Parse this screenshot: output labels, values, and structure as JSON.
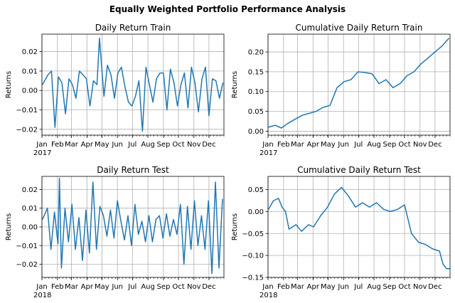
{
  "figure": {
    "title": "Equally Weighted Portfolio Performance Analysis"
  },
  "colors": {
    "line": "#1f77b4",
    "grid": "#b0b0b0",
    "axis": "#000000"
  },
  "chart_data": [
    {
      "type": "line",
      "title": "Daily Return Train",
      "ylabel": "Returns",
      "xlim": [
        "2017-01-01",
        "2017-12-31"
      ],
      "ylim": [
        -0.023,
        0.029
      ],
      "grid": true,
      "x_ticks": [
        "Jan",
        "Feb",
        "Mar",
        "Apr",
        "May",
        "Jun",
        "Jul",
        "Aug",
        "Sep",
        "Oct",
        "Nov",
        "Dec"
      ],
      "x_year": "2017",
      "y_ticks": [
        "−0.02",
        "−0.01",
        "0.00",
        "0.01",
        "0.02"
      ],
      "y_tick_values": [
        -0.02,
        -0.01,
        0.0,
        0.01,
        0.02
      ],
      "x": [
        "2017-01-02",
        "2017-01-13",
        "2017-01-20",
        "2017-01-27",
        "2017-02-03",
        "2017-02-10",
        "2017-02-17",
        "2017-02-24",
        "2017-03-03",
        "2017-03-10",
        "2017-03-17",
        "2017-03-24",
        "2017-03-31",
        "2017-04-07",
        "2017-04-14",
        "2017-04-21",
        "2017-04-26",
        "2017-05-05",
        "2017-05-12",
        "2017-05-19",
        "2017-05-26",
        "2017-06-02",
        "2017-06-09",
        "2017-06-16",
        "2017-06-23",
        "2017-06-30",
        "2017-07-07",
        "2017-07-14",
        "2017-07-21",
        "2017-07-28",
        "2017-08-04",
        "2017-08-11",
        "2017-08-18",
        "2017-08-25",
        "2017-09-01",
        "2017-09-08",
        "2017-09-15",
        "2017-09-22",
        "2017-09-29",
        "2017-10-06",
        "2017-10-13",
        "2017-10-20",
        "2017-10-27",
        "2017-11-03",
        "2017-11-10",
        "2017-11-17",
        "2017-11-24",
        "2017-12-01",
        "2017-12-08",
        "2017-12-15",
        "2017-12-22",
        "2017-12-29"
      ],
      "values": [
        0.003,
        0.008,
        0.01,
        -0.019,
        0.007,
        0.004,
        -0.012,
        0.006,
        0.003,
        -0.004,
        0.01,
        0.008,
        0.006,
        -0.008,
        0.005,
        0.003,
        0.027,
        -0.003,
        0.013,
        0.008,
        -0.004,
        0.009,
        0.012,
        0.002,
        -0.006,
        -0.008,
        -0.003,
        0.005,
        -0.021,
        0.012,
        0.003,
        -0.006,
        0.006,
        0.009,
        0.009,
        -0.01,
        0.011,
        0.004,
        -0.008,
        0.003,
        0.009,
        -0.009,
        0.012,
        0.004,
        -0.011,
        0.006,
        0.012,
        -0.013,
        0.006,
        0.005,
        -0.004,
        0.004
      ]
    },
    {
      "type": "line",
      "title": "Cumulative Daily Return Train",
      "ylabel": "Returns",
      "xlim": [
        "2017-01-01",
        "2017-12-31"
      ],
      "ylim": [
        -0.01,
        0.245
      ],
      "grid": true,
      "x_ticks": [
        "Jan",
        "Feb",
        "Mar",
        "Apr",
        "May",
        "Jun",
        "Jul",
        "Aug",
        "Sep",
        "Oct",
        "Nov",
        "Dec"
      ],
      "x_year": "2017",
      "y_ticks": [
        "0.00",
        "0.05",
        "0.10",
        "0.15",
        "0.20"
      ],
      "y_tick_values": [
        0.0,
        0.05,
        0.1,
        0.15,
        0.2
      ],
      "x": [
        "2017-01-02",
        "2017-01-15",
        "2017-01-28",
        "2017-02-10",
        "2017-02-24",
        "2017-03-10",
        "2017-03-24",
        "2017-04-07",
        "2017-04-21",
        "2017-05-05",
        "2017-05-19",
        "2017-06-02",
        "2017-06-16",
        "2017-06-30",
        "2017-07-14",
        "2017-07-28",
        "2017-08-11",
        "2017-08-25",
        "2017-09-08",
        "2017-09-22",
        "2017-10-06",
        "2017-10-20",
        "2017-11-03",
        "2017-11-17",
        "2017-12-01",
        "2017-12-15",
        "2017-12-29"
      ],
      "values": [
        0.01,
        0.015,
        0.008,
        0.02,
        0.03,
        0.04,
        0.045,
        0.05,
        0.06,
        0.065,
        0.11,
        0.125,
        0.13,
        0.15,
        0.148,
        0.145,
        0.12,
        0.13,
        0.11,
        0.12,
        0.14,
        0.15,
        0.17,
        0.185,
        0.2,
        0.215,
        0.235
      ]
    },
    {
      "type": "line",
      "title": "Daily Return Test",
      "ylabel": "Returns",
      "xlim": [
        "2018-01-01",
        "2018-12-31"
      ],
      "ylim": [
        -0.027,
        0.027
      ],
      "grid": true,
      "x_ticks": [
        "Jan",
        "Feb",
        "Mar",
        "Apr",
        "May",
        "Jun",
        "Jul",
        "Aug",
        "Sep",
        "Oct",
        "Nov",
        "Dec"
      ],
      "x_year": "2018",
      "y_ticks": [
        "−0.02",
        "−0.01",
        "0.00",
        "0.01",
        "0.02"
      ],
      "y_tick_values": [
        -0.02,
        -0.01,
        0.0,
        0.01,
        0.02
      ],
      "x": [
        "2018-01-02",
        "2018-01-12",
        "2018-01-19",
        "2018-01-26",
        "2018-02-02",
        "2018-02-05",
        "2018-02-09",
        "2018-02-16",
        "2018-02-23",
        "2018-03-02",
        "2018-03-09",
        "2018-03-16",
        "2018-03-23",
        "2018-03-30",
        "2018-04-06",
        "2018-04-13",
        "2018-04-20",
        "2018-04-27",
        "2018-05-04",
        "2018-05-11",
        "2018-05-18",
        "2018-05-25",
        "2018-06-01",
        "2018-06-08",
        "2018-06-15",
        "2018-06-22",
        "2018-06-29",
        "2018-07-06",
        "2018-07-13",
        "2018-07-20",
        "2018-07-27",
        "2018-08-03",
        "2018-08-10",
        "2018-08-17",
        "2018-08-24",
        "2018-08-31",
        "2018-09-07",
        "2018-09-14",
        "2018-09-21",
        "2018-09-28",
        "2018-10-05",
        "2018-10-12",
        "2018-10-19",
        "2018-10-26",
        "2018-11-02",
        "2018-11-09",
        "2018-11-16",
        "2018-11-23",
        "2018-11-30",
        "2018-12-07",
        "2018-12-14",
        "2018-12-21",
        "2018-12-28"
      ],
      "values": [
        0.004,
        0.01,
        -0.012,
        0.008,
        -0.009,
        0.026,
        -0.022,
        0.01,
        -0.008,
        0.012,
        -0.012,
        0.005,
        -0.018,
        0.009,
        -0.014,
        0.024,
        -0.012,
        0.011,
        0.006,
        -0.005,
        0.009,
        -0.006,
        0.014,
        0.003,
        -0.007,
        0.006,
        -0.01,
        0.012,
        -0.004,
        0.003,
        -0.008,
        0.006,
        -0.008,
        0.004,
        0.006,
        -0.006,
        0.007,
        -0.005,
        0.004,
        -0.004,
        0.012,
        -0.02,
        0.011,
        -0.012,
        0.014,
        -0.01,
        0.006,
        -0.012,
        0.014,
        -0.025,
        0.024,
        -0.022,
        0.015
      ]
    },
    {
      "type": "line",
      "title": "Cumulative Daily Return Test",
      "ylabel": "Returns",
      "xlim": [
        "2018-01-01",
        "2018-12-31"
      ],
      "ylim": [
        -0.15,
        0.08
      ],
      "grid": true,
      "x_ticks": [
        "Jan",
        "Feb",
        "Mar",
        "Apr",
        "May",
        "Jun",
        "Jul",
        "Aug",
        "Sep",
        "Oct",
        "Nov",
        "Dec"
      ],
      "x_year": "2018",
      "y_ticks": [
        "−0.15",
        "−0.10",
        "−0.05",
        "0.00",
        "0.05"
      ],
      "y_tick_values": [
        -0.15,
        -0.1,
        -0.05,
        0.0,
        0.05
      ],
      "x": [
        "2018-01-02",
        "2018-01-12",
        "2018-01-22",
        "2018-01-29",
        "2018-02-05",
        "2018-02-12",
        "2018-02-26",
        "2018-03-09",
        "2018-03-23",
        "2018-04-02",
        "2018-04-16",
        "2018-04-30",
        "2018-05-14",
        "2018-05-28",
        "2018-06-11",
        "2018-06-25",
        "2018-07-09",
        "2018-07-23",
        "2018-08-06",
        "2018-08-20",
        "2018-09-03",
        "2018-09-17",
        "2018-10-01",
        "2018-10-15",
        "2018-10-29",
        "2018-11-12",
        "2018-11-26",
        "2018-12-10",
        "2018-12-17",
        "2018-12-24",
        "2018-12-31"
      ],
      "values": [
        0.005,
        0.025,
        0.03,
        0.01,
        0.0,
        -0.04,
        -0.03,
        -0.045,
        -0.03,
        -0.035,
        -0.01,
        0.01,
        0.04,
        0.055,
        0.035,
        0.01,
        0.02,
        0.01,
        0.02,
        0.005,
        0.0,
        0.005,
        0.015,
        -0.05,
        -0.07,
        -0.075,
        -0.085,
        -0.09,
        -0.12,
        -0.13,
        -0.13
      ]
    }
  ]
}
